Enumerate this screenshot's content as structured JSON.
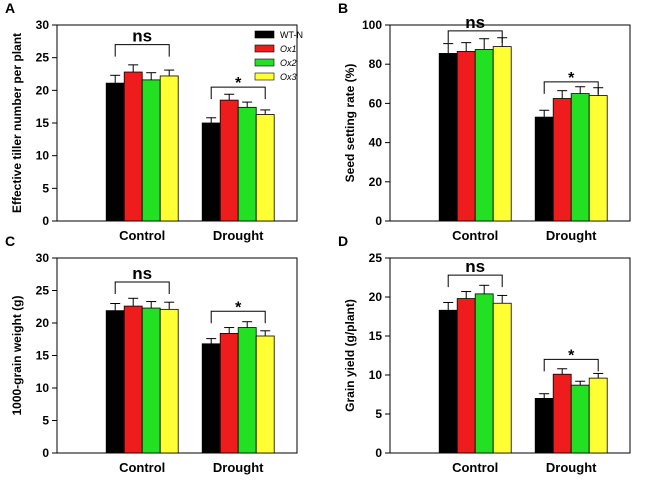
{
  "colors": {
    "WT-N": "#000000",
    "Ox1": "#ee1c1c",
    "Ox2": "#22e022",
    "Ox3": "#ffff33"
  },
  "legend": [
    {
      "name": "WT-N",
      "italic": false
    },
    {
      "name": "Ox1",
      "italic": true
    },
    {
      "name": "Ox2",
      "italic": true
    },
    {
      "name": "Ox3",
      "italic": true
    }
  ],
  "chart_data": [
    {
      "panel": "A",
      "type": "bar",
      "ylabel": "Effective tiller number per plant",
      "ylim": [
        0,
        30
      ],
      "yticks": [
        0,
        5,
        10,
        15,
        20,
        25,
        30
      ],
      "categories": [
        "Control",
        "Drought"
      ],
      "series": [
        {
          "name": "WT-N",
          "values": [
            21.1,
            15.0
          ],
          "errors": [
            1.2,
            0.8
          ]
        },
        {
          "name": "Ox1",
          "values": [
            22.8,
            18.5
          ],
          "errors": [
            1.1,
            0.9
          ]
        },
        {
          "name": "Ox2",
          "values": [
            21.6,
            17.4
          ],
          "errors": [
            1.1,
            0.8
          ]
        },
        {
          "name": "Ox3",
          "values": [
            22.2,
            16.3
          ],
          "errors": [
            0.9,
            0.7
          ]
        }
      ],
      "significance": [
        {
          "category": "Control",
          "label": "ns",
          "level": 27.0
        },
        {
          "category": "Drought",
          "label": "*",
          "level": 20.5
        }
      ]
    },
    {
      "panel": "B",
      "type": "bar",
      "ylabel": "Seed setting rate (%)",
      "ylim": [
        0,
        100
      ],
      "yticks": [
        0,
        20,
        40,
        60,
        80,
        100
      ],
      "categories": [
        "Control",
        "Drought"
      ],
      "series": [
        {
          "name": "WT-N",
          "values": [
            85.5,
            53.0
          ],
          "errors": [
            5.0,
            3.5
          ]
        },
        {
          "name": "Ox1",
          "values": [
            86.5,
            62.5
          ],
          "errors": [
            4.5,
            4.0
          ]
        },
        {
          "name": "Ox2",
          "values": [
            87.5,
            65.0
          ],
          "errors": [
            5.5,
            3.5
          ]
        },
        {
          "name": "Ox3",
          "values": [
            89.0,
            64.0
          ],
          "errors": [
            4.5,
            4.0
          ]
        }
      ],
      "significance": [
        {
          "category": "Control",
          "label": "ns",
          "level": 97.0
        },
        {
          "category": "Drought",
          "label": "*",
          "level": 71.0
        }
      ]
    },
    {
      "panel": "C",
      "type": "bar",
      "ylabel": "1000-grain weight (g)",
      "ylim": [
        0,
        30
      ],
      "yticks": [
        0,
        5,
        10,
        15,
        20,
        25,
        30
      ],
      "categories": [
        "Control",
        "Drought"
      ],
      "series": [
        {
          "name": "WT-N",
          "values": [
            21.9,
            16.8
          ],
          "errors": [
            1.1,
            0.8
          ]
        },
        {
          "name": "Ox1",
          "values": [
            22.6,
            18.4
          ],
          "errors": [
            1.2,
            0.9
          ]
        },
        {
          "name": "Ox2",
          "values": [
            22.3,
            19.3
          ],
          "errors": [
            1.0,
            0.9
          ]
        },
        {
          "name": "Ox3",
          "values": [
            22.1,
            18.0
          ],
          "errors": [
            1.1,
            0.8
          ]
        }
      ],
      "significance": [
        {
          "category": "Control",
          "label": "ns",
          "level": 26.3
        },
        {
          "category": "Drought",
          "label": "*",
          "level": 21.8
        }
      ]
    },
    {
      "panel": "D",
      "type": "bar",
      "ylabel": "Grain yield (g/plant)",
      "ylim": [
        0,
        25
      ],
      "yticks": [
        0,
        5,
        10,
        15,
        20,
        25
      ],
      "categories": [
        "Control",
        "Drought"
      ],
      "series": [
        {
          "name": "WT-N",
          "values": [
            18.3,
            7.0
          ],
          "errors": [
            1.0,
            0.6
          ]
        },
        {
          "name": "Ox1",
          "values": [
            19.8,
            10.1
          ],
          "errors": [
            0.9,
            0.7
          ]
        },
        {
          "name": "Ox2",
          "values": [
            20.4,
            8.7
          ],
          "errors": [
            1.1,
            0.5
          ]
        },
        {
          "name": "Ox3",
          "values": [
            19.2,
            9.6
          ],
          "errors": [
            1.0,
            0.6
          ]
        }
      ],
      "significance": [
        {
          "category": "Control",
          "label": "ns",
          "level": 22.8
        },
        {
          "category": "Drought",
          "label": "*",
          "level": 12.0
        }
      ]
    }
  ]
}
